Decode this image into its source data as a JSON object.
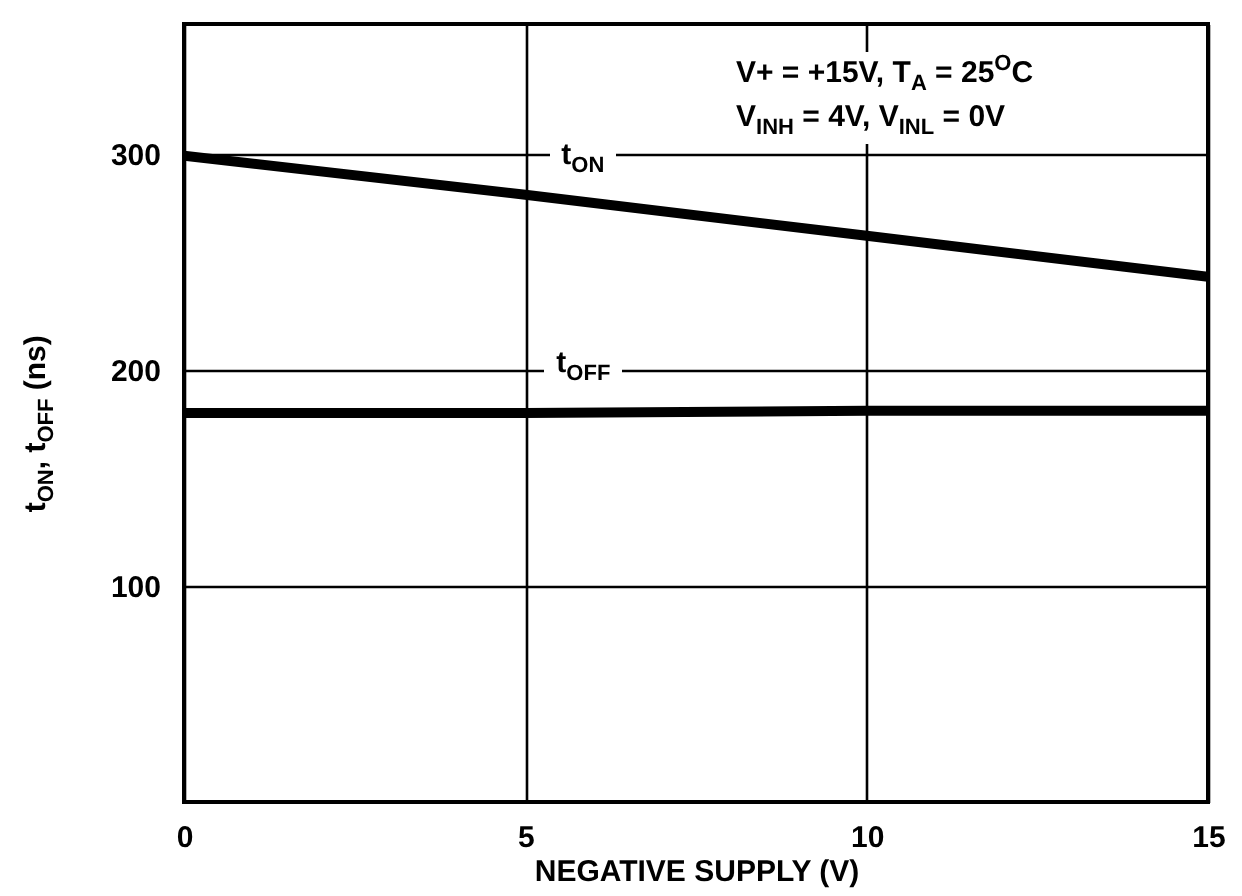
{
  "chart_data": {
    "type": "line",
    "xlabel": "NEGATIVE SUPPLY (V)",
    "ylabel": "t$_{ON}$, t$_{OFF}$ (ns)",
    "annotations": [
      "V+ = +15V, T$_{A}$ = 25$^{O}$C",
      "V$_{INH}$ = 4V, V$_{INL}$ = 0V"
    ],
    "x": [
      0,
      5,
      10,
      15
    ],
    "series": [
      {
        "name": "t$_{ON}$",
        "color": "#000000",
        "values": [
          299,
          281,
          262,
          243
        ]
      },
      {
        "name": "t$_{OFF}$",
        "color": "#000000",
        "values": [
          180,
          180,
          181,
          181
        ]
      }
    ],
    "xlim": [
      0,
      15
    ],
    "ylim": [
      0,
      360
    ],
    "xticks": [
      0,
      5,
      10,
      15
    ],
    "yticks": [
      100,
      200,
      300
    ],
    "grid": true
  }
}
